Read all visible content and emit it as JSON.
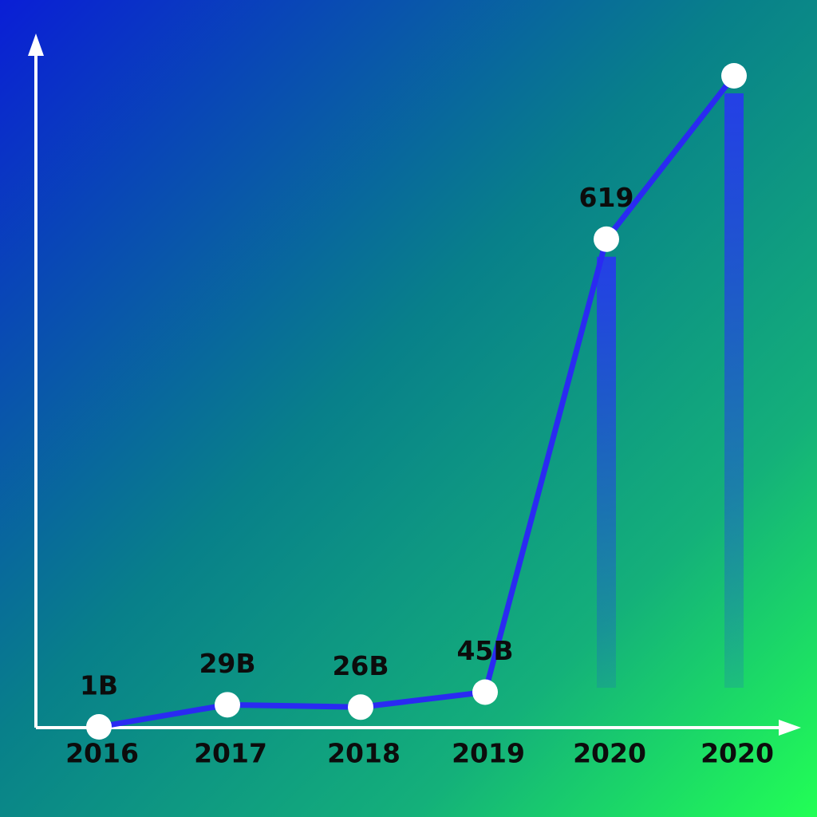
{
  "chart_data": {
    "type": "line",
    "categories": [
      "2016",
      "2017",
      "2018",
      "2019",
      "2020",
      "2020"
    ],
    "values": [
      1,
      29,
      26,
      45,
      619,
      826
    ],
    "value_labels": [
      "1B",
      "29B",
      "26B",
      "45B",
      "619",
      null
    ],
    "color": "#2a2af2",
    "bar_color": "#2440e6"
  }
}
